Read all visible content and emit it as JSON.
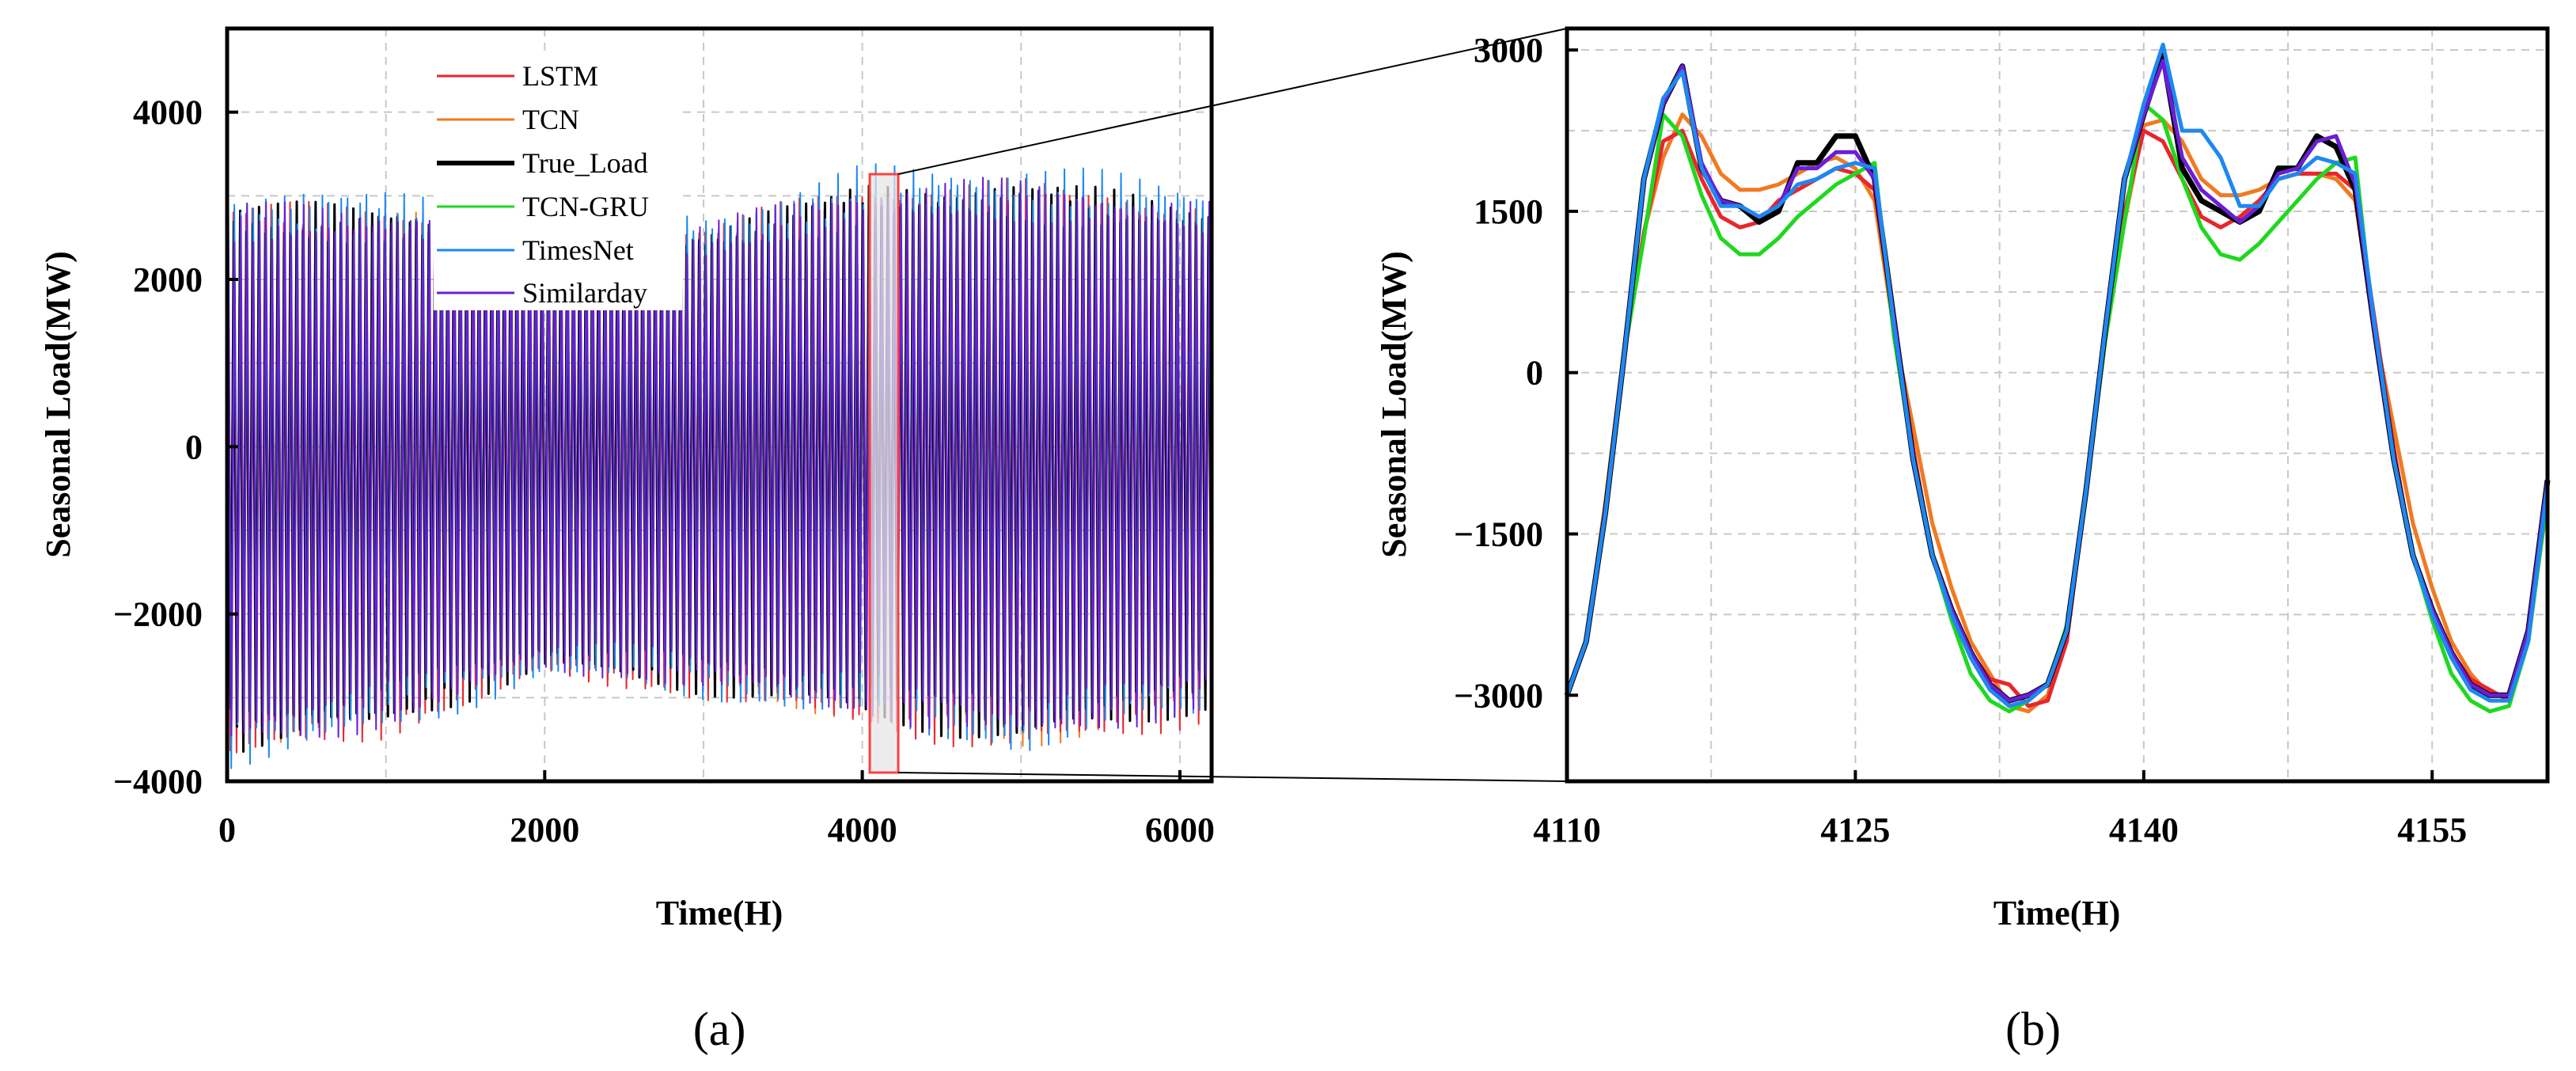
{
  "chart_data": [
    {
      "panel_label": "(a)",
      "type": "line",
      "xlabel": "Time(H)",
      "ylabel": "Seasonal Load(MW)",
      "xlim": [
        0,
        6200
      ],
      "ylim": [
        -4000,
        5000
      ],
      "xticks": [
        "0",
        "2000",
        "4000",
        "6000"
      ],
      "yticks": [
        "−4000",
        "−2000",
        "0",
        "2000",
        "4000"
      ],
      "grid": true,
      "legend_position": "top-center",
      "series": [
        {
          "name": "LSTM",
          "color": "#e8262d"
        },
        {
          "name": "TCN",
          "color": "#f07a22"
        },
        {
          "name": "True_Load",
          "color": "#000000"
        },
        {
          "name": "TCN-GRU",
          "color": "#1fd81f"
        },
        {
          "name": "TimesNet",
          "color": "#1e88f0"
        },
        {
          "name": "Similarday",
          "color": "#6a1ed6"
        }
      ],
      "daily_cycle_hours": 24,
      "peak_envelope": {
        "x": [
          0,
          1000,
          2000,
          3000,
          4000,
          5000,
          6200
        ],
        "y": [
          2700,
          2650,
          2550,
          2450,
          2900,
          2950,
          2700
        ]
      },
      "trough_envelope": {
        "x": [
          0,
          1000,
          2000,
          3000,
          4000,
          5000,
          6200
        ],
        "y": [
          -3400,
          -3100,
          -2500,
          -2700,
          -3000,
          -3300,
          -2900
        ]
      },
      "zoom_region": {
        "x": [
          4110,
          4160
        ]
      }
    },
    {
      "panel_label": "(b)",
      "type": "line",
      "xlabel": "Time(H)",
      "ylabel": "Seasonal Load(MW)",
      "xlim": [
        4110,
        4161
      ],
      "ylim": [
        -3800,
        3200
      ],
      "xticks": [
        "4110",
        "4125",
        "4140",
        "4155"
      ],
      "yticks": [
        "−3000",
        "−1500",
        "0",
        "1500",
        "3000"
      ],
      "grid": true,
      "x": [
        4110,
        4111,
        4112,
        4113,
        4114,
        4115,
        4116,
        4117,
        4118,
        4119,
        4120,
        4121,
        4122,
        4123,
        4124,
        4125,
        4126,
        4127,
        4128,
        4129,
        4130,
        4131,
        4132,
        4133,
        4134,
        4135,
        4136,
        4137,
        4138,
        4139,
        4140,
        4141,
        4142,
        4143,
        4144,
        4145,
        4146,
        4147,
        4148,
        4149,
        4150,
        4151,
        4152,
        4153,
        4154,
        4155,
        4156,
        4157,
        4158,
        4159,
        4160,
        4161
      ],
      "series": [
        {
          "name": "LSTM",
          "color": "#e8262d",
          "values": [
            -3000,
            -2500,
            -1300,
            200,
            1300,
            2150,
            2250,
            1800,
            1450,
            1350,
            1400,
            1600,
            1700,
            1800,
            1900,
            1850,
            1700,
            500,
            -700,
            -1700,
            -2200,
            -2600,
            -2850,
            -2900,
            -3100,
            -3050,
            -2500,
            -1100,
            400,
            1500,
            2250,
            2150,
            1800,
            1450,
            1350,
            1450,
            1600,
            1800,
            1850,
            1850,
            1850,
            1700,
            500,
            -700,
            -1700,
            -2200,
            -2600,
            -2850,
            -2950,
            -3050,
            -2400,
            -1200
          ]
        },
        {
          "name": "TCN",
          "color": "#f07a22",
          "values": [
            -3000,
            -2500,
            -1200,
            250,
            1300,
            2000,
            2400,
            2200,
            1850,
            1700,
            1700,
            1750,
            1850,
            1950,
            2000,
            1900,
            1600,
            400,
            -500,
            -1400,
            -2000,
            -2500,
            -2800,
            -3100,
            -3150,
            -3000,
            -2400,
            -1100,
            300,
            1400,
            2300,
            2350,
            2150,
            1800,
            1650,
            1650,
            1700,
            1800,
            1850,
            1850,
            1800,
            1600,
            400,
            -500,
            -1400,
            -2000,
            -2500,
            -2800,
            -3000,
            -3000,
            -2500,
            -1150
          ]
        },
        {
          "name": "True_Load",
          "color": "#000000",
          "values": [
            -3000,
            -2500,
            -1300,
            200,
            1800,
            2500,
            2850,
            1900,
            1600,
            1550,
            1400,
            1500,
            1950,
            1950,
            2200,
            2200,
            1800,
            500,
            -800,
            -1700,
            -2200,
            -2600,
            -2900,
            -3050,
            -3000,
            -2900,
            -2400,
            -1100,
            400,
            1800,
            2400,
            2950,
            1900,
            1600,
            1500,
            1400,
            1500,
            1900,
            1900,
            2200,
            2100,
            1700,
            400,
            -800,
            -1700,
            -2200,
            -2600,
            -2900,
            -3000,
            -3000,
            -2400,
            -1000
          ]
        },
        {
          "name": "TCN-GRU",
          "color": "#1fd81f",
          "values": [
            -3000,
            -2500,
            -1250,
            200,
            1250,
            2400,
            2200,
            1650,
            1250,
            1100,
            1100,
            1250,
            1450,
            1600,
            1750,
            1850,
            1950,
            350,
            -800,
            -1700,
            -2300,
            -2800,
            -3050,
            -3150,
            -3050,
            -2900,
            -2350,
            -1100,
            300,
            1400,
            2500,
            2350,
            1800,
            1350,
            1100,
            1050,
            1200,
            1400,
            1600,
            1800,
            1950,
            2000,
            350,
            -800,
            -1700,
            -2300,
            -2800,
            -3050,
            -3150,
            -3100,
            -2500,
            -1150
          ]
        },
        {
          "name": "TimesNet",
          "color": "#1e88f0",
          "values": [
            -3000,
            -2500,
            -1300,
            200,
            1800,
            2550,
            2800,
            1900,
            1550,
            1550,
            1450,
            1550,
            1750,
            1800,
            1900,
            1950,
            1900,
            450,
            -800,
            -1700,
            -2250,
            -2650,
            -2950,
            -3100,
            -3050,
            -2900,
            -2400,
            -1100,
            400,
            1800,
            2500,
            3050,
            2250,
            2250,
            2000,
            1550,
            1550,
            1800,
            1850,
            2000,
            1950,
            1850,
            450,
            -800,
            -1700,
            -2250,
            -2650,
            -2950,
            -3050,
            -3050,
            -2500,
            -1050
          ]
        },
        {
          "name": "Similarday",
          "color": "#6a1ed6",
          "values": [
            -3000,
            -2500,
            -1300,
            200,
            1800,
            2500,
            2850,
            1950,
            1600,
            1550,
            1450,
            1550,
            1900,
            1900,
            2050,
            2050,
            1800,
            500,
            -800,
            -1700,
            -2200,
            -2600,
            -2900,
            -3050,
            -3000,
            -2900,
            -2400,
            -1100,
            400,
            1800,
            2400,
            2900,
            2000,
            1700,
            1550,
            1400,
            1550,
            1850,
            1900,
            2150,
            2200,
            1750,
            400,
            -800,
            -1700,
            -2200,
            -2600,
            -2900,
            -3000,
            -3000,
            -2400,
            -1000
          ]
        }
      ]
    }
  ]
}
